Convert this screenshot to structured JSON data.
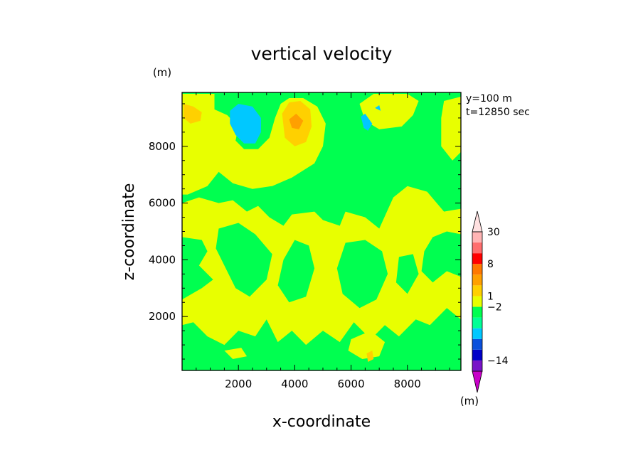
{
  "chart_data": {
    "type": "heatmap",
    "title": "vertical velocity",
    "xlabel": "x-coordinate",
    "ylabel": "z-coordinate",
    "y_unit": "(m)",
    "x_unit": "(m)",
    "annotations": [
      "y=100 m",
      "t=12850 sec"
    ],
    "xlim": [
      0,
      9900
    ],
    "ylim": [
      100,
      9900
    ],
    "x_ticks": [
      2000,
      4000,
      6000,
      8000
    ],
    "y_ticks": [
      2000,
      4000,
      6000,
      8000
    ],
    "x_tick_labels": [
      "2000",
      "4000",
      "6000",
      "8000"
    ],
    "y_tick_labels": [
      "2000",
      "4000",
      "6000",
      "8000"
    ],
    "colorbar": {
      "colors": [
        "#c800c8",
        "#7814c8",
        "#0000c8",
        "#0a50dc",
        "#00c8ff",
        "#00ff96",
        "#00ff50",
        "#e8ff00",
        "#ffd000",
        "#ffa000",
        "#ff7800",
        "#ff0000",
        "#ff6e6e",
        "#ffb4b4",
        "#ffe0e0"
      ],
      "labels": [
        {
          "text": "30",
          "at_band": 14
        },
        {
          "text": "8",
          "at_band": 11
        },
        {
          "text": "1",
          "at_band": 8
        },
        {
          "text": "−2",
          "at_band": 7
        },
        {
          "text": "−14",
          "at_band": 2
        }
      ]
    },
    "background_level_color": "#00ff50",
    "regions": [
      {
        "level": "#e8ff00",
        "pts": [
          [
            0,
            9850
          ],
          [
            1150,
            9850
          ],
          [
            1150,
            9300
          ],
          [
            1600,
            9100
          ],
          [
            2000,
            8700
          ],
          [
            1900,
            8200
          ],
          [
            2200,
            7900
          ],
          [
            2700,
            7900
          ],
          [
            3100,
            8300
          ],
          [
            3300,
            9000
          ],
          [
            3500,
            9500
          ],
          [
            3800,
            9700
          ],
          [
            4300,
            9700
          ],
          [
            4800,
            9400
          ],
          [
            5100,
            8800
          ],
          [
            5000,
            8000
          ],
          [
            4700,
            7400
          ],
          [
            3900,
            6900
          ],
          [
            3200,
            6600
          ],
          [
            2500,
            6500
          ],
          [
            1800,
            6700
          ],
          [
            1300,
            7100
          ],
          [
            900,
            6600
          ],
          [
            200,
            6300
          ],
          [
            0,
            6300
          ]
        ]
      },
      {
        "level": "#e8ff00",
        "pts": [
          [
            0,
            9850
          ],
          [
            0,
            9800
          ],
          [
            100,
            9850
          ]
        ]
      },
      {
        "level": "#e8ff00",
        "pts": [
          [
            6800,
            9850
          ],
          [
            8000,
            9850
          ],
          [
            8400,
            9600
          ],
          [
            8200,
            9100
          ],
          [
            7800,
            8700
          ],
          [
            7000,
            8600
          ],
          [
            6500,
            8900
          ],
          [
            6300,
            9500
          ]
        ]
      },
      {
        "level": "#e8ff00",
        "pts": [
          [
            9300,
            9600
          ],
          [
            9900,
            9750
          ],
          [
            9900,
            7800
          ],
          [
            9600,
            7500
          ],
          [
            9200,
            8000
          ],
          [
            9200,
            9000
          ]
        ]
      },
      {
        "level": "#e8ff00",
        "pts": [
          [
            0,
            6000
          ],
          [
            600,
            6200
          ],
          [
            1300,
            6000
          ],
          [
            1800,
            6100
          ],
          [
            2300,
            5700
          ],
          [
            2700,
            5900
          ],
          [
            3100,
            5500
          ],
          [
            3600,
            5200
          ],
          [
            3900,
            5600
          ],
          [
            4700,
            5700
          ],
          [
            5000,
            5400
          ],
          [
            5600,
            5200
          ],
          [
            5800,
            5700
          ],
          [
            6500,
            5500
          ],
          [
            7000,
            5100
          ],
          [
            7500,
            6200
          ],
          [
            8000,
            6600
          ],
          [
            8700,
            6400
          ],
          [
            9300,
            5700
          ],
          [
            9900,
            5800
          ],
          [
            9900,
            4900
          ],
          [
            9400,
            5000
          ],
          [
            8900,
            4800
          ],
          [
            8600,
            4300
          ],
          [
            8500,
            3600
          ],
          [
            8900,
            3200
          ],
          [
            9400,
            3600
          ],
          [
            9900,
            3400
          ],
          [
            9900,
            1900
          ],
          [
            9400,
            2300
          ],
          [
            8800,
            1700
          ],
          [
            8300,
            1900
          ],
          [
            7700,
            1300
          ],
          [
            7200,
            1700
          ],
          [
            6700,
            1200
          ],
          [
            6100,
            1800
          ],
          [
            5600,
            1100
          ],
          [
            5000,
            1500
          ],
          [
            4400,
            1000
          ],
          [
            3900,
            1500
          ],
          [
            3400,
            1100
          ],
          [
            3000,
            1900
          ],
          [
            2600,
            1300
          ],
          [
            2000,
            1500
          ],
          [
            1500,
            1000
          ],
          [
            900,
            1300
          ],
          [
            400,
            1800
          ],
          [
            0,
            1700
          ],
          [
            0,
            2600
          ],
          [
            700,
            3000
          ],
          [
            1100,
            3300
          ],
          [
            600,
            3800
          ],
          [
            900,
            4300
          ],
          [
            700,
            4700
          ],
          [
            0,
            4800
          ]
        ]
      },
      {
        "level": "#00ff50",
        "pts": [
          [
            1300,
            5100
          ],
          [
            2000,
            5300
          ],
          [
            2600,
            4900
          ],
          [
            3200,
            4200
          ],
          [
            3000,
            3300
          ],
          [
            2400,
            2700
          ],
          [
            1900,
            3000
          ],
          [
            1500,
            3800
          ],
          [
            1200,
            4400
          ]
        ]
      },
      {
        "level": "#00ff50",
        "pts": [
          [
            4000,
            4700
          ],
          [
            4500,
            4500
          ],
          [
            4700,
            3700
          ],
          [
            4400,
            2700
          ],
          [
            3800,
            2500
          ],
          [
            3400,
            3100
          ],
          [
            3600,
            4000
          ]
        ]
      },
      {
        "level": "#00ff50",
        "pts": [
          [
            5800,
            4600
          ],
          [
            6500,
            4700
          ],
          [
            7100,
            4300
          ],
          [
            7300,
            3500
          ],
          [
            6900,
            2600
          ],
          [
            6300,
            2300
          ],
          [
            5700,
            2800
          ],
          [
            5500,
            3700
          ]
        ]
      },
      {
        "level": "#00ff50",
        "pts": [
          [
            7700,
            4100
          ],
          [
            8200,
            4200
          ],
          [
            8400,
            3500
          ],
          [
            8000,
            2800
          ],
          [
            7600,
            3200
          ]
        ]
      },
      {
        "level": "#00ff50",
        "pts": [
          [
            200,
            1300
          ],
          [
            700,
            600
          ],
          [
            1200,
            700
          ],
          [
            1500,
            400
          ],
          [
            2300,
            500
          ],
          [
            2600,
            800
          ],
          [
            3100,
            500
          ],
          [
            3700,
            700
          ],
          [
            4100,
            400
          ],
          [
            4800,
            700
          ],
          [
            5300,
            400
          ],
          [
            6000,
            300
          ],
          [
            6900,
            600
          ],
          [
            7600,
            400
          ],
          [
            8300,
            800
          ],
          [
            8900,
            600
          ],
          [
            9500,
            900
          ],
          [
            9900,
            800
          ],
          [
            9900,
            100
          ],
          [
            0,
            100
          ],
          [
            0,
            1200
          ]
        ]
      },
      {
        "level": "#e8ff00",
        "pts": [
          [
            6000,
            1200
          ],
          [
            6700,
            1500
          ],
          [
            7200,
            1100
          ],
          [
            7000,
            600
          ],
          [
            6400,
            500
          ],
          [
            5900,
            800
          ]
        ]
      },
      {
        "level": "#e8ff00",
        "pts": [
          [
            1500,
            800
          ],
          [
            2100,
            900
          ],
          [
            2300,
            600
          ],
          [
            1800,
            500
          ]
        ]
      },
      {
        "level": "#ffd000",
        "pts": [
          [
            50,
            9500
          ],
          [
            400,
            9400
          ],
          [
            700,
            9200
          ],
          [
            650,
            8900
          ],
          [
            300,
            8800
          ],
          [
            50,
            9000
          ]
        ]
      },
      {
        "level": "#ffd000",
        "pts": [
          [
            3550,
            9150
          ],
          [
            3800,
            9550
          ],
          [
            4200,
            9600
          ],
          [
            4550,
            9300
          ],
          [
            4600,
            8700
          ],
          [
            4400,
            8150
          ],
          [
            4000,
            8000
          ],
          [
            3650,
            8300
          ]
        ]
      },
      {
        "level": "#ffa000",
        "pts": [
          [
            3800,
            8950
          ],
          [
            4050,
            9150
          ],
          [
            4300,
            8900
          ],
          [
            4150,
            8600
          ],
          [
            3900,
            8650
          ]
        ]
      },
      {
        "level": "#ffd000",
        "pts": [
          [
            6550,
            700
          ],
          [
            6750,
            800
          ],
          [
            6800,
            500
          ],
          [
            6600,
            400
          ]
        ]
      },
      {
        "level": "#00c8ff",
        "pts": [
          [
            1700,
            9250
          ],
          [
            2000,
            9500
          ],
          [
            2500,
            9400
          ],
          [
            2800,
            9000
          ],
          [
            2800,
            8500
          ],
          [
            2600,
            8100
          ],
          [
            2200,
            8100
          ],
          [
            1900,
            8400
          ],
          [
            1700,
            8800
          ]
        ]
      },
      {
        "level": "#00c8ff",
        "pts": [
          [
            6350,
            9050
          ],
          [
            6500,
            9150
          ],
          [
            6750,
            8800
          ],
          [
            6600,
            8550
          ],
          [
            6450,
            8650
          ]
        ]
      },
      {
        "level": "#00c8ff",
        "pts": [
          [
            6850,
            9350
          ],
          [
            7000,
            9450
          ],
          [
            7050,
            9250
          ]
        ]
      }
    ]
  }
}
